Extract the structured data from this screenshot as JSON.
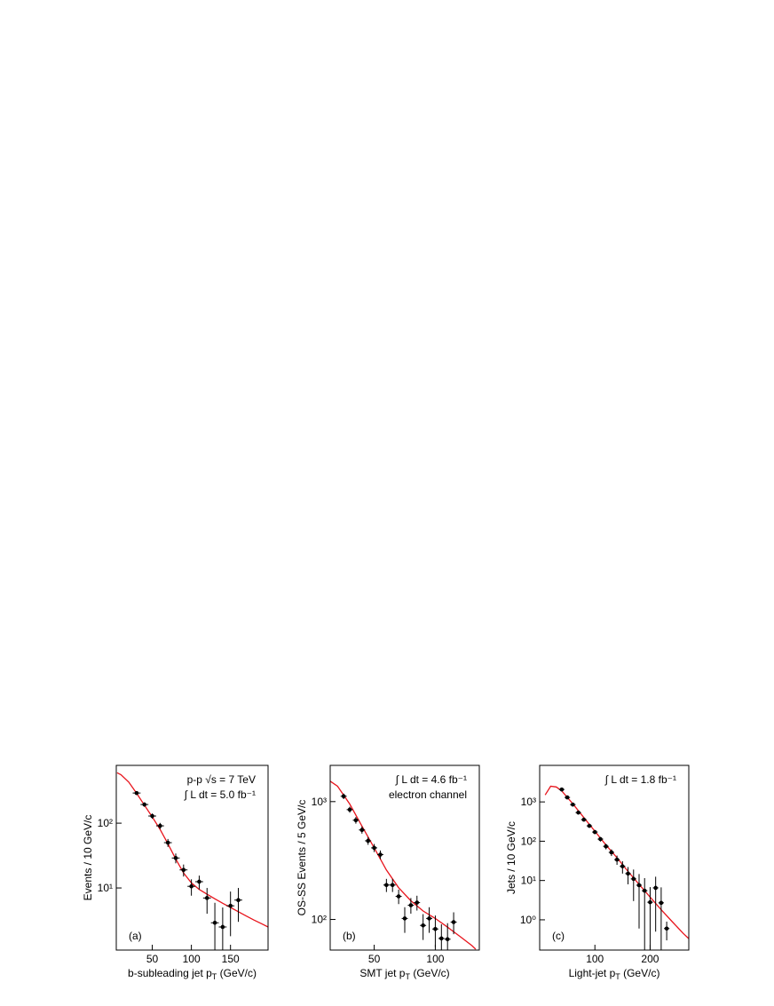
{
  "chart_data": [
    {
      "type": "scatter",
      "panel": "(a)",
      "ylabel": "Events / 10 GeV/c",
      "xlabel": [
        "b-subleading jet p",
        "T",
        " (GeV/c)"
      ],
      "annotations": [
        "p-p √s = 7 TeV",
        "∫ L dt = 5.0 fb⁻¹"
      ],
      "xlim": [
        4,
        198
      ],
      "xticks": [
        50,
        100,
        150
      ],
      "ylim": [
        1.1,
        780
      ],
      "yticks": [
        {
          "value": 10,
          "label": "10¹"
        },
        {
          "value": 100,
          "label": "10²"
        }
      ],
      "log_y": true,
      "x": [
        30,
        40,
        50,
        60,
        70,
        80,
        90,
        100,
        110,
        120,
        130,
        140,
        150,
        160
      ],
      "values": [
        292,
        194,
        129,
        91,
        50,
        29,
        19,
        10.6,
        12.5,
        7,
        2.9,
        2.5,
        5.3,
        6.5
      ],
      "errors": [
        20,
        15,
        12,
        10,
        7,
        5,
        4,
        3,
        3,
        3,
        3,
        2.5,
        3.5,
        3.5
      ],
      "color": "#000000",
      "curve": {
        "x": [
          5,
          10,
          20,
          30,
          40,
          50,
          60,
          70,
          80,
          90,
          100,
          110,
          120,
          130,
          140,
          150,
          160,
          170,
          180,
          190,
          198
        ],
        "values": [
          600,
          560,
          430,
          290,
          190,
          125,
          80,
          48,
          28,
          17,
          12,
          9.5,
          8,
          6.8,
          5.8,
          5,
          4.3,
          3.7,
          3.2,
          2.8,
          2.5
        ],
        "color": "#e8141c"
      }
    },
    {
      "type": "scatter",
      "panel": "(b)",
      "ylabel": "OS-SS Events / 5 GeV/c",
      "xlabel": [
        "SMT jet p",
        "T",
        " (GeV/c)"
      ],
      "annotations": [
        "∫ L dt = 4.6 fb⁻¹",
        "electron channel"
      ],
      "xlim": [
        14,
        136
      ],
      "xticks": [
        50,
        100
      ],
      "ylim": [
        55,
        2030
      ],
      "yticks": [
        {
          "value": 100,
          "label": "10²"
        },
        {
          "value": 1000,
          "label": "10³"
        }
      ],
      "log_y": true,
      "x": [
        25,
        30,
        35,
        40,
        45,
        50,
        55,
        60,
        65,
        70,
        75,
        80,
        85,
        90,
        95,
        100,
        105,
        110,
        115
      ],
      "values": [
        1110,
        855,
        695,
        575,
        465,
        405,
        355,
        196,
        196,
        157,
        102,
        132,
        139,
        89,
        102,
        83,
        69,
        68,
        95
      ],
      "errors": [
        60,
        50,
        45,
        40,
        35,
        32,
        30,
        25,
        25,
        22,
        25,
        20,
        20,
        22,
        25,
        25,
        22,
        25,
        20
      ],
      "color": "#000000",
      "curve": {
        "x": [
          14,
          20,
          30,
          40,
          50,
          60,
          70,
          80,
          90,
          100,
          110,
          120,
          130,
          133
        ],
        "values": [
          1490,
          1350,
          955,
          620,
          405,
          263,
          186,
          144,
          118,
          102,
          86,
          72,
          60,
          56
        ],
        "color": "#e8141c"
      }
    },
    {
      "type": "scatter",
      "panel": "(c)",
      "ylabel": "Jets / 10 GeV/c",
      "xlabel": [
        "Light-jet p",
        "T",
        " (GeV/c)"
      ],
      "annotations": [
        "∫ L dt = 1.8 fb⁻¹"
      ],
      "xlim": [
        0,
        270
      ],
      "xticks": [
        100,
        200
      ],
      "ylim": [
        0.17,
        8500
      ],
      "yticks": [
        {
          "value": 1,
          "label": "10⁰"
        },
        {
          "value": 10,
          "label": "10¹"
        },
        {
          "value": 100,
          "label": "10²"
        },
        {
          "value": 1000,
          "label": "10³"
        }
      ],
      "log_y": true,
      "x": [
        40,
        50,
        60,
        70,
        80,
        90,
        100,
        110,
        120,
        130,
        140,
        150,
        160,
        170,
        180,
        190,
        200,
        210,
        220,
        230
      ],
      "values": [
        2070,
        1300,
        855,
        535,
        354,
        246,
        171,
        113,
        74,
        52,
        34,
        23,
        15,
        11,
        7.6,
        5.5,
        2.8,
        6.5,
        2.7,
        0.6
      ],
      "errors": [
        150,
        100,
        70,
        50,
        35,
        25,
        20,
        15,
        12,
        10,
        9,
        8,
        7,
        8,
        7,
        6,
        4,
        6,
        4,
        0.3
      ],
      "color": "#000000",
      "curve": {
        "x": [
          10,
          20,
          30,
          40,
          60,
          80,
          100,
          120,
          140,
          160,
          180,
          200,
          220,
          240,
          260,
          270
        ],
        "values": [
          1500,
          2500,
          2400,
          1900,
          900,
          400,
          180,
          80,
          38,
          17,
          8,
          3.8,
          1.8,
          0.9,
          0.45,
          0.33
        ],
        "color": "#e8141c"
      }
    }
  ]
}
